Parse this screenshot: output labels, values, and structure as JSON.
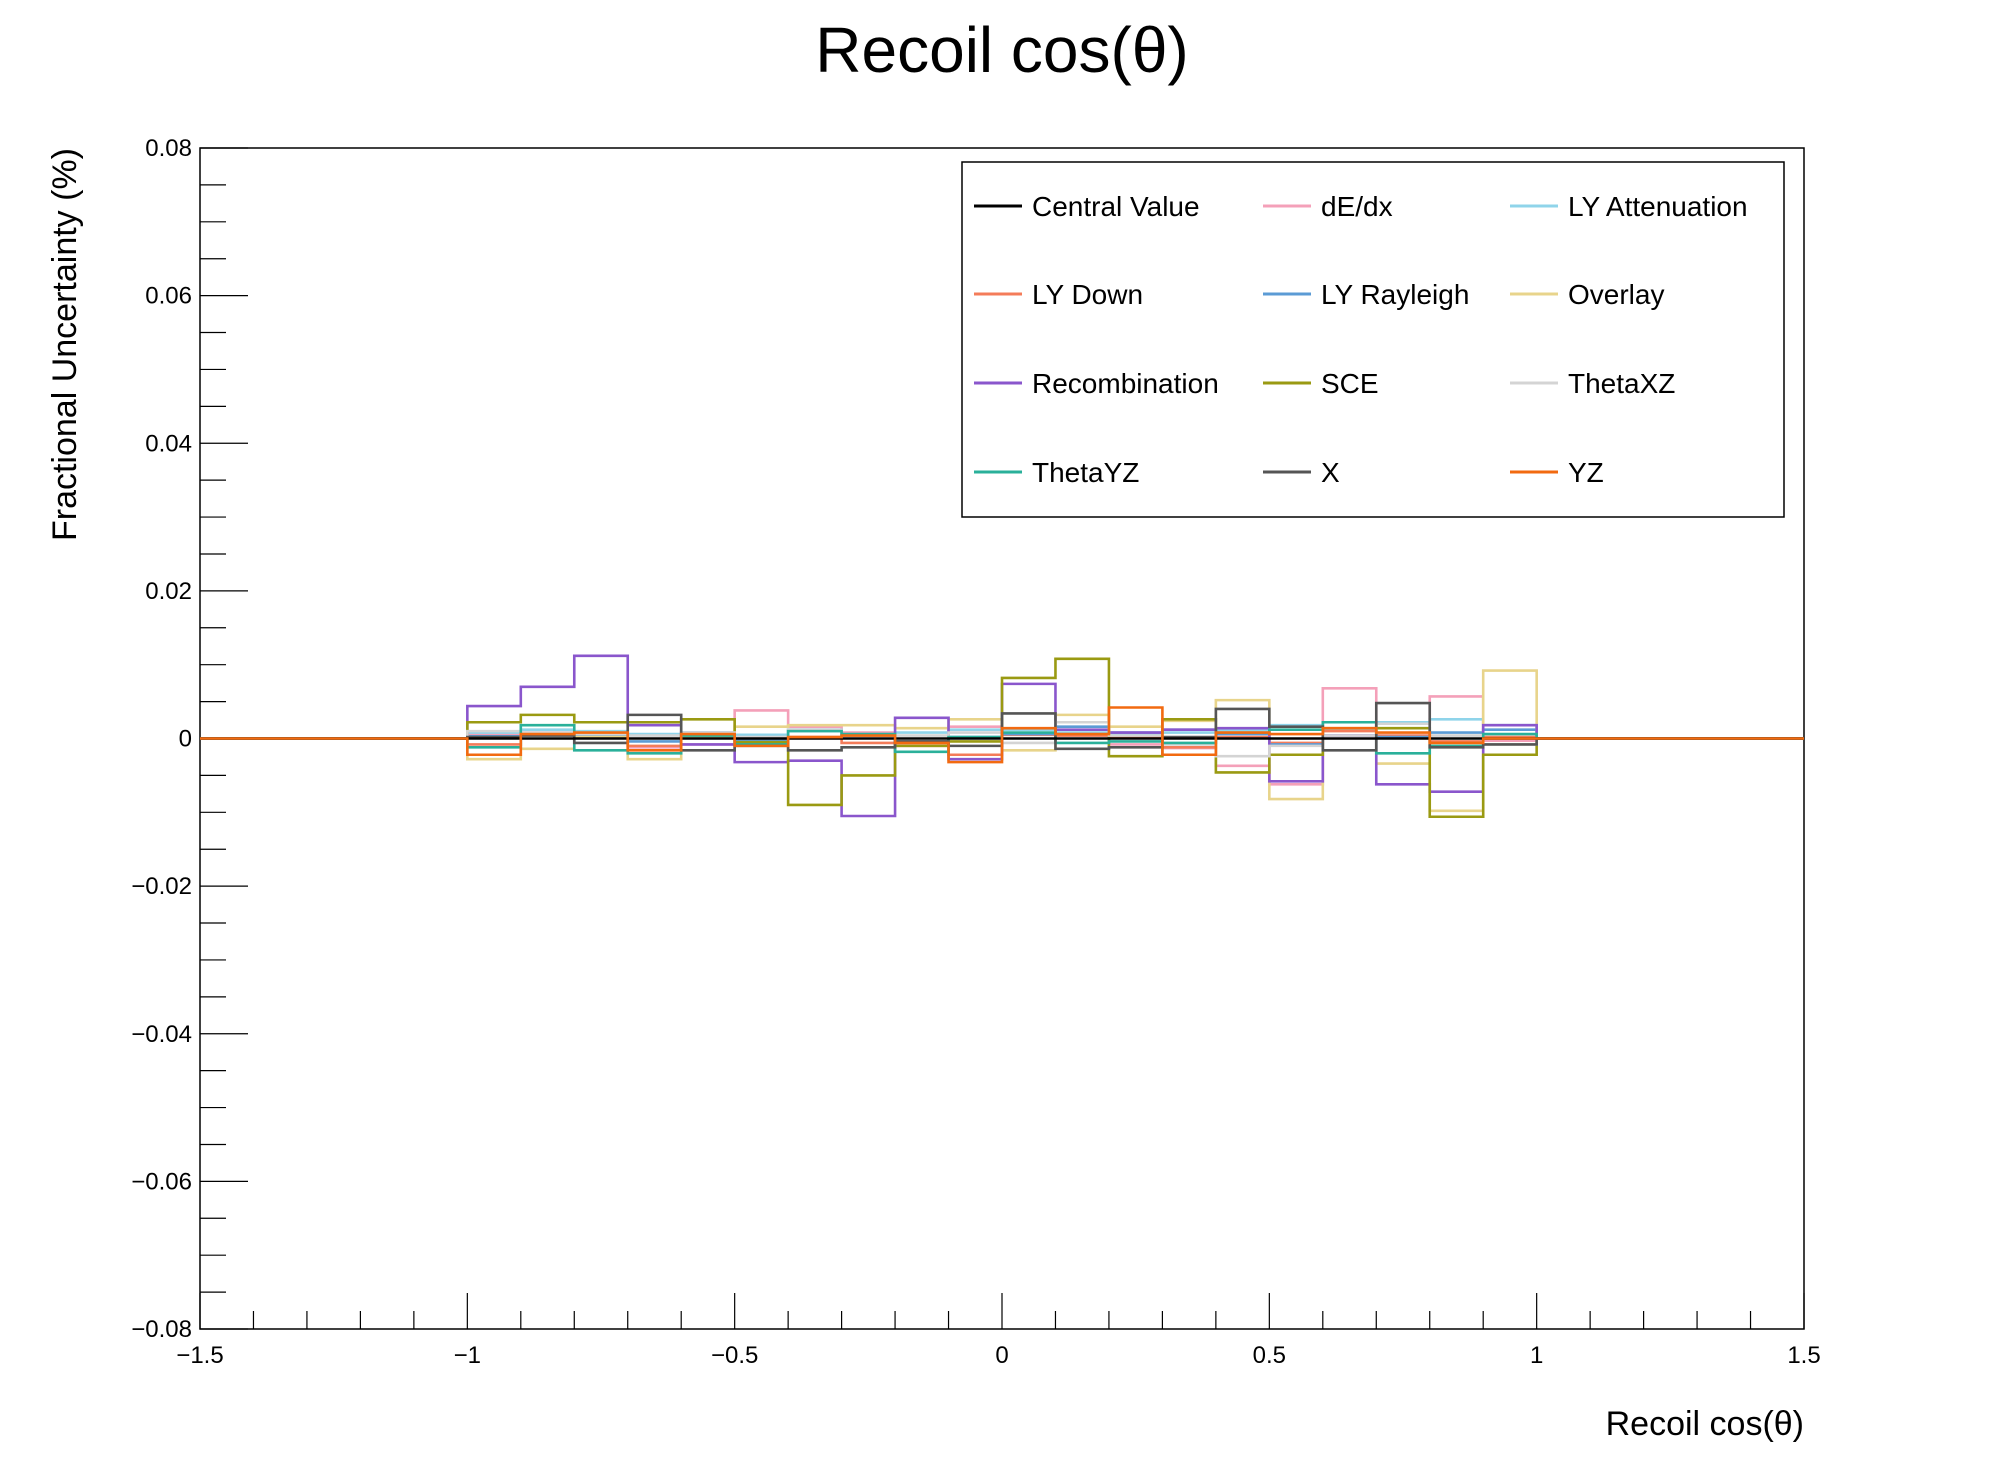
{
  "chart_data": {
    "type": "line",
    "title": "Recoil cos(θ)",
    "xlabel": "Recoil cos(θ)",
    "ylabel": "Fractional Uncertainty (%)",
    "xlim": [
      -1.5,
      1.5
    ],
    "ylim": [
      -0.08,
      0.08
    ],
    "x_ticks": [
      "−1.5",
      "−1",
      "−0.5",
      "0",
      "0.5",
      "1",
      "1.5"
    ],
    "x_tick_values": [
      -1.5,
      -1,
      -0.5,
      0,
      0.5,
      1,
      1.5
    ],
    "y_ticks": [
      "0.08",
      "0.06",
      "0.04",
      "0.02",
      "0",
      "−0.02",
      "−0.04",
      "−0.06",
      "−0.08"
    ],
    "y_tick_values": [
      0.08,
      0.06,
      0.04,
      0.02,
      0,
      -0.02,
      -0.04,
      -0.06,
      -0.08
    ],
    "bin_edges": [
      -1.0,
      -0.9,
      -0.8,
      -0.7,
      -0.6,
      -0.5,
      -0.4,
      -0.3,
      -0.2,
      -0.1,
      0.0,
      0.1,
      0.2,
      0.3,
      0.4,
      0.5,
      0.6,
      0.7,
      0.8,
      0.9,
      1.0
    ],
    "legend_position": "top-right",
    "series": [
      {
        "name": "Central Value",
        "color": "#000000",
        "values": [
          0,
          0,
          0,
          0,
          0,
          0,
          0,
          0,
          0,
          0,
          0,
          0,
          0,
          0,
          0,
          0,
          0,
          0,
          0,
          0
        ]
      },
      {
        "name": "dE/dx",
        "color": "#f4a0b9",
        "values": [
          0.0005,
          0.0008,
          0.0006,
          -0.0012,
          -0.0008,
          0.0038,
          0.0016,
          0.0008,
          -0.0006,
          0.0016,
          0.0012,
          0.0005,
          -0.0008,
          -0.0013,
          -0.0037,
          -0.0062,
          0.0068,
          0.0022,
          0.0057,
          -0.0003
        ]
      },
      {
        "name": "LY Attenuation",
        "color": "#8fd4ea",
        "values": [
          0.0008,
          0.0012,
          0.001,
          0.0006,
          0.0004,
          0.0005,
          0.001,
          0.0004,
          0.0008,
          0.0012,
          0.0012,
          0.0008,
          0.0006,
          0.0008,
          0.0012,
          0.0018,
          0.0012,
          0.0022,
          0.0026,
          0.0018
        ]
      },
      {
        "name": "LY Down",
        "color": "#f47c5a",
        "values": [
          -0.0008,
          0.0006,
          0.0004,
          -0.001,
          0.0003,
          -0.0004,
          0.0002,
          -0.0006,
          -0.001,
          -0.0022,
          0.0005,
          0.0004,
          0.0003,
          -0.0012,
          0.0002,
          -0.0006,
          0.001,
          0.0004,
          -0.0004,
          0.0002
        ]
      },
      {
        "name": "LY Rayleigh",
        "color": "#5b9bd5",
        "values": [
          0.0003,
          0.0006,
          0.0004,
          -0.0004,
          0.0008,
          -0.0002,
          0.0012,
          0.0004,
          -0.0004,
          0.0002,
          0.0006,
          0.0016,
          0.0008,
          0.0012,
          0.0006,
          -0.0008,
          0.0004,
          0.0002,
          0.0008,
          0.0012
        ]
      },
      {
        "name": "Overlay",
        "color": "#e8d48b",
        "values": [
          -0.0028,
          -0.0014,
          0.0002,
          -0.0028,
          0.0003,
          0.0016,
          0.0018,
          0.0018,
          0.0014,
          0.0026,
          -0.0016,
          0.0032,
          0.0016,
          0.0024,
          0.0052,
          -0.0082,
          0.0014,
          -0.0034,
          -0.0098,
          0.0092
        ]
      },
      {
        "name": "Recombination",
        "color": "#8a56cc",
        "values": [
          0.0044,
          0.007,
          0.0112,
          0.0018,
          -0.0008,
          -0.0032,
          -0.003,
          -0.0105,
          0.0028,
          -0.0028,
          0.0074,
          0.0012,
          0.0008,
          0.0012,
          0.0014,
          -0.0058,
          0.0004,
          -0.0062,
          -0.0072,
          0.0018
        ]
      },
      {
        "name": "SCE",
        "color": "#9a9a12",
        "values": [
          0.0022,
          0.0032,
          0.0022,
          0.0022,
          0.0026,
          -0.0005,
          -0.009,
          -0.005,
          -0.001,
          -0.0004,
          0.0082,
          0.0108,
          -0.0024,
          0.0026,
          -0.0046,
          -0.0022,
          0.0022,
          0.0014,
          -0.0106,
          -0.0022
        ]
      },
      {
        "name": "ThetaXZ",
        "color": "#d4d4d4",
        "values": [
          0.001,
          0.0008,
          0.0006,
          0.0004,
          0.0008,
          0.0002,
          0.0012,
          0.0004,
          0.0004,
          0.0008,
          -0.0006,
          0.0022,
          0.0004,
          -0.0008,
          -0.0024,
          -0.001,
          0.0004,
          0.002,
          0.0004,
          -0.0008
        ]
      },
      {
        "name": "ThetaYZ",
        "color": "#2ab09a",
        "values": [
          -0.0012,
          0.0018,
          -0.0016,
          -0.002,
          0.0004,
          -0.0008,
          0.001,
          0.0006,
          -0.0018,
          0.0002,
          0.0008,
          -0.0006,
          -0.0004,
          -0.0006,
          0.0008,
          0.0012,
          0.0022,
          -0.002,
          -0.001,
          0.0006
        ]
      },
      {
        "name": "X",
        "color": "#555555",
        "values": [
          0.0002,
          0.0004,
          -0.0006,
          0.0032,
          -0.0016,
          -0.001,
          -0.0016,
          -0.0012,
          -0.0004,
          -0.001,
          0.0034,
          -0.0014,
          -0.0012,
          0.0002,
          0.004,
          0.0016,
          -0.0016,
          0.0048,
          -0.0012,
          -0.0008
        ]
      },
      {
        "name": "YZ",
        "color": "#f26a10",
        "values": [
          -0.0022,
          0.0006,
          0.0008,
          -0.0016,
          0.0006,
          -0.001,
          0.0002,
          0.0004,
          -0.0006,
          -0.0032,
          0.0014,
          0.0006,
          0.0042,
          -0.0022,
          0.0008,
          0.0006,
          0.0014,
          0.0008,
          -0.0006,
          0.0
        ]
      }
    ]
  }
}
